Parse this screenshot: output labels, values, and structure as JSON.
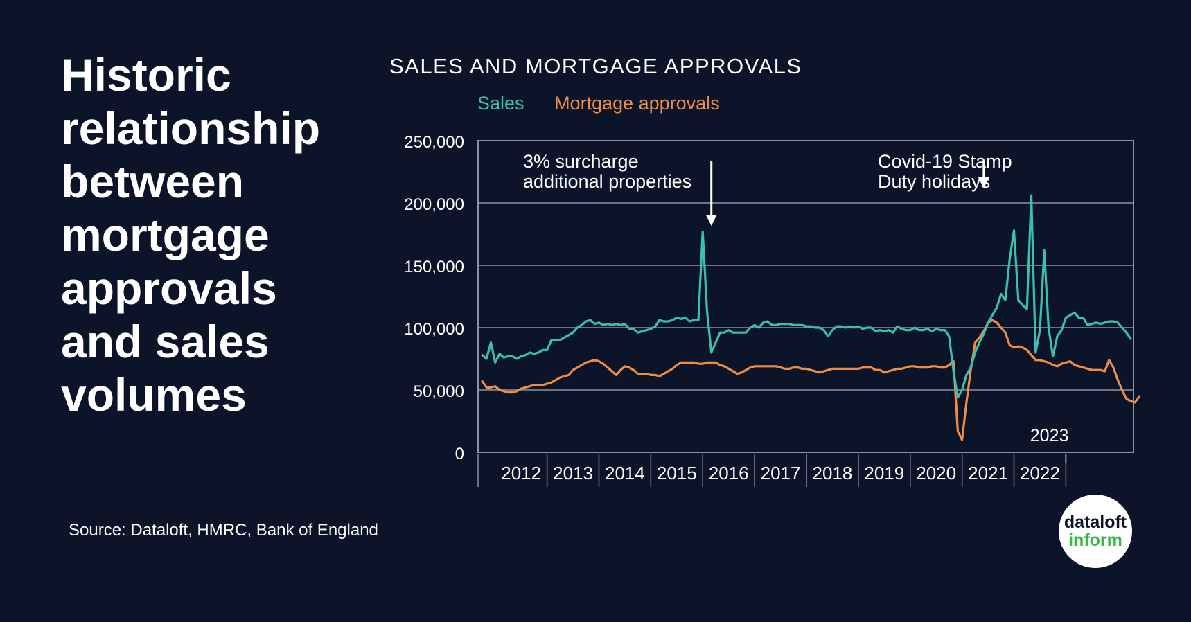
{
  "headline": "Historic relationship between mortgage approvals and sales volumes",
  "source": "Source: Dataloft, HMRC, Bank of England",
  "logo": {
    "line1": "dataloft",
    "line2": "inform"
  },
  "colors": {
    "background": "#0b1428",
    "sales": "#3bbfb0",
    "approvals": "#f08c44",
    "grid": "#8a93a3",
    "text": "#ffffff"
  },
  "chart_data": {
    "type": "line",
    "title": "SALES AND MORTGAGE APPROVALS",
    "ylim": [
      0,
      250000
    ],
    "yticks": [
      0,
      50000,
      100000,
      150000,
      200000,
      250000
    ],
    "ytick_labels": [
      "0",
      "50,000",
      "100,000",
      "150,000",
      "200,000",
      "250,000"
    ],
    "xticks": [
      "2012",
      "2013",
      "2014",
      "2015",
      "2016",
      "2017",
      "2018",
      "2019",
      "2020",
      "2021",
      "2022",
      "2023"
    ],
    "grid": true,
    "legend_position": "top-left",
    "x_start": "2011-10",
    "series": [
      {
        "name": "Sales",
        "values": [
          78000,
          75000,
          88000,
          72000,
          79000,
          76000,
          77000,
          77000,
          75000,
          77000,
          78000,
          80000,
          79000,
          80000,
          82000,
          82000,
          90000,
          90000,
          90000,
          92000,
          94000,
          96000,
          100000,
          102000,
          105000,
          106000,
          103000,
          104000,
          102000,
          103000,
          102000,
          103000,
          102000,
          103000,
          99000,
          99000,
          96000,
          97000,
          98000,
          99000,
          101000,
          106000,
          105000,
          105000,
          106000,
          108000,
          107000,
          108000,
          105000,
          106000,
          106000,
          177000,
          113000,
          80000,
          88000,
          96000,
          96000,
          98000,
          96000,
          96000,
          96000,
          96000,
          100000,
          102000,
          100000,
          104000,
          105000,
          102000,
          102000,
          103000,
          103000,
          103000,
          102000,
          102000,
          102000,
          101000,
          101000,
          100000,
          100000,
          98000,
          93000,
          98000,
          101000,
          101000,
          100000,
          101000,
          100000,
          101000,
          99000,
          100000,
          100000,
          97000,
          98000,
          97000,
          98000,
          96000,
          101000,
          99000,
          98000,
          98000,
          100000,
          98000,
          98000,
          99000,
          97000,
          99000,
          98000,
          98000,
          93000,
          65000,
          44000,
          50000,
          62000,
          68000,
          80000,
          88000,
          95000,
          104000,
          110000,
          116000,
          127000,
          122000,
          155000,
          178000,
          122000,
          118000,
          115000,
          206000,
          80000,
          98000,
          162000,
          100000,
          77000,
          93000,
          98000,
          108000,
          110000,
          112000,
          108000,
          108000,
          102000,
          103000,
          104000,
          103000,
          104000,
          105000,
          105000,
          104000,
          100000,
          96000,
          91000
        ]
      },
      {
        "name": "Mortgage approvals",
        "values": [
          57000,
          52000,
          52000,
          53000,
          50000,
          49000,
          48000,
          48000,
          49000,
          51000,
          52000,
          53000,
          54000,
          54000,
          54000,
          55000,
          56000,
          58000,
          60000,
          61000,
          62000,
          66000,
          68000,
          70000,
          72000,
          73000,
          74000,
          73000,
          71000,
          68000,
          65000,
          62000,
          66000,
          69000,
          68000,
          66000,
          63000,
          63000,
          63000,
          62000,
          62000,
          61000,
          63000,
          65000,
          67000,
          70000,
          72000,
          72000,
          72000,
          72000,
          71000,
          71000,
          72000,
          72000,
          72000,
          70000,
          69000,
          67000,
          65000,
          63000,
          64000,
          66000,
          68000,
          69000,
          69000,
          69000,
          69000,
          69000,
          69000,
          68000,
          67000,
          67000,
          68000,
          68000,
          67000,
          67000,
          66000,
          65000,
          64000,
          65000,
          66000,
          67000,
          67000,
          67000,
          67000,
          67000,
          67000,
          67000,
          68000,
          68000,
          68000,
          66000,
          66000,
          64000,
          65000,
          66000,
          67000,
          67000,
          68000,
          69000,
          69000,
          68000,
          68000,
          68000,
          69000,
          69000,
          68000,
          68000,
          70000,
          73000,
          17000,
          10000,
          40000,
          66000,
          88000,
          92000,
          97000,
          104000,
          106000,
          104000,
          100000,
          96000,
          86000,
          84000,
          85000,
          84000,
          82000,
          78000,
          74000,
          74000,
          73000,
          72000,
          70000,
          69000,
          71000,
          72000,
          73000,
          70000,
          69000,
          68000,
          67000,
          66000,
          66000,
          66000,
          65000,
          74000,
          68000,
          58000,
          50000,
          43000,
          41000,
          40000,
          45000
        ]
      }
    ],
    "annotations": [
      {
        "text": [
          "3% surcharge",
          "additional properties"
        ],
        "at": "2016-03"
      },
      {
        "text": [
          "Covid-19 Stamp",
          "Duty holidays"
        ],
        "at": "2021-06"
      }
    ]
  }
}
